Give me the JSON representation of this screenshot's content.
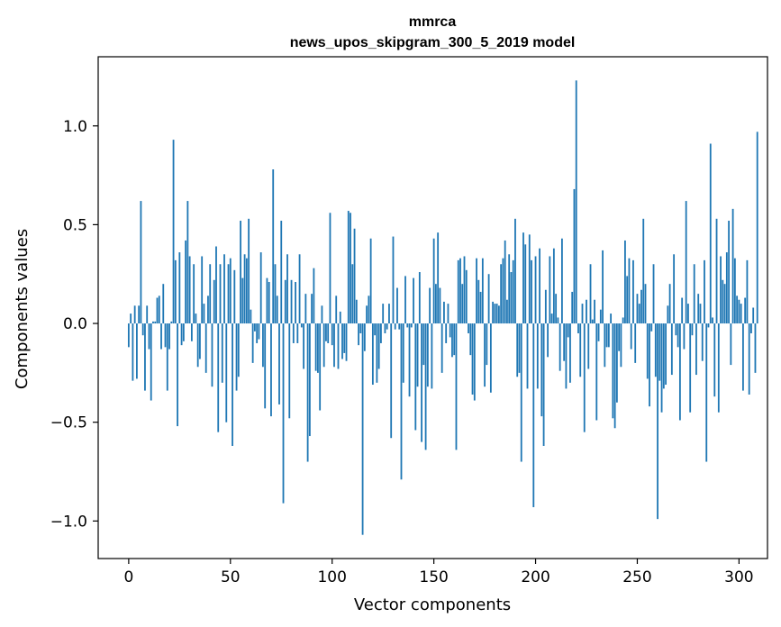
{
  "chart_data": {
    "type": "bar",
    "title": "mmrca",
    "subtitle": "news_upos_skipgram_300_5_2019 model",
    "xlabel": "Vector components",
    "ylabel": "Components values",
    "xlim": [
      -15,
      314
    ],
    "ylim": [
      -1.19,
      1.35
    ],
    "xticks": [
      0,
      50,
      100,
      150,
      200,
      250,
      300
    ],
    "xtick_labels": [
      "0",
      "50",
      "100",
      "150",
      "200",
      "250",
      "300"
    ],
    "yticks": [
      -1.0,
      -0.5,
      0.0,
      0.5,
      1.0
    ],
    "ytick_labels": [
      "−1.0",
      "−0.5",
      "0.0",
      "0.5",
      "1.0"
    ],
    "grid": false,
    "bar_color": "#1f77b4",
    "values": [
      -0.12,
      0.05,
      -0.29,
      0.09,
      -0.28,
      0.09,
      0.62,
      -0.06,
      -0.34,
      0.09,
      -0.13,
      -0.39,
      0.01,
      0.01,
      0.13,
      0.14,
      -0.13,
      0.2,
      -0.12,
      -0.34,
      -0.13,
      0.01,
      0.93,
      0.32,
      -0.52,
      0.36,
      -0.11,
      -0.09,
      0.42,
      0.62,
      0.34,
      -0.09,
      0.3,
      0.05,
      -0.22,
      -0.18,
      0.34,
      0.1,
      -0.25,
      0.14,
      0.3,
      -0.32,
      0.22,
      0.39,
      -0.55,
      0.3,
      -0.3,
      0.35,
      -0.5,
      0.3,
      0.33,
      -0.62,
      0.27,
      -0.34,
      -0.27,
      0.52,
      0.23,
      0.35,
      0.33,
      0.53,
      0.07,
      -0.2,
      -0.04,
      -0.1,
      -0.08,
      0.36,
      -0.22,
      -0.43,
      0.23,
      0.21,
      -0.47,
      0.78,
      0.3,
      0.14,
      -0.41,
      0.52,
      -0.91,
      0.22,
      0.35,
      -0.48,
      0.22,
      -0.1,
      0.21,
      -0.1,
      0.35,
      -0.02,
      -0.23,
      0.15,
      -0.7,
      -0.57,
      0.15,
      0.28,
      -0.24,
      -0.25,
      -0.44,
      0.09,
      -0.22,
      -0.09,
      -0.1,
      0.56,
      -0.11,
      -0.22,
      0.14,
      -0.23,
      0.06,
      -0.18,
      -0.15,
      -0.19,
      0.57,
      0.56,
      0.3,
      0.48,
      0.12,
      -0.11,
      -0.05,
      -1.07,
      -0.14,
      0.09,
      0.14,
      0.43,
      -0.31,
      -0.06,
      -0.3,
      -0.23,
      -0.1,
      0.1,
      -0.05,
      -0.03,
      0.1,
      -0.58,
      0.44,
      -0.03,
      0.18,
      -0.03,
      -0.79,
      -0.3,
      0.24,
      -0.02,
      -0.37,
      -0.02,
      0.23,
      -0.54,
      -0.32,
      0.26,
      -0.6,
      -0.21,
      -0.64,
      -0.32,
      0.18,
      -0.33,
      0.43,
      0.2,
      0.46,
      0.18,
      -0.25,
      0.11,
      -0.1,
      0.1,
      -0.07,
      -0.17,
      -0.16,
      -0.64,
      0.32,
      0.33,
      0.2,
      0.34,
      0.27,
      -0.05,
      -0.16,
      -0.36,
      -0.39,
      0.33,
      0.22,
      0.16,
      0.33,
      -0.32,
      -0.21,
      0.25,
      -0.35,
      0.11,
      0.1,
      0.1,
      0.09,
      0.3,
      0.33,
      0.42,
      0.12,
      0.35,
      0.26,
      0.32,
      0.53,
      -0.27,
      -0.25,
      -0.7,
      0.46,
      0.4,
      -0.33,
      0.45,
      0.32,
      -0.93,
      0.34,
      -0.33,
      0.38,
      -0.47,
      -0.62,
      0.17,
      -0.17,
      0.34,
      0.05,
      0.38,
      0.15,
      0.03,
      -0.24,
      0.43,
      -0.19,
      -0.33,
      -0.07,
      -0.3,
      0.16,
      0.68,
      1.23,
      -0.05,
      -0.27,
      0.1,
      -0.55,
      0.12,
      -0.23,
      0.3,
      0.02,
      0.12,
      -0.49,
      -0.09,
      0.07,
      0.37,
      -0.22,
      -0.12,
      -0.12,
      0.05,
      -0.48,
      -0.53,
      -0.4,
      -0.14,
      -0.22,
      0.03,
      0.42,
      0.24,
      0.33,
      -0.13,
      0.32,
      -0.2,
      0.15,
      0.1,
      0.17,
      0.53,
      0.2,
      -0.28,
      -0.42,
      -0.04,
      0.3,
      -0.27,
      -0.99,
      -0.29,
      -0.45,
      -0.33,
      -0.31,
      0.09,
      0.2,
      -0.26,
      0.35,
      -0.06,
      -0.12,
      -0.49,
      0.13,
      -0.13,
      0.62,
      0.1,
      -0.45,
      -0.06,
      0.3,
      -0.26,
      0.15,
      0.1,
      -0.19,
      0.32,
      -0.7,
      -0.02,
      0.91,
      0.03,
      -0.37,
      0.53,
      -0.45,
      0.34,
      0.22,
      0.2,
      0.36,
      0.52,
      -0.21,
      0.58,
      0.33,
      0.14,
      0.12,
      0.1,
      -0.34,
      0.13,
      0.32,
      -0.36,
      -0.05,
      0.08,
      -0.25,
      0.97
    ]
  }
}
